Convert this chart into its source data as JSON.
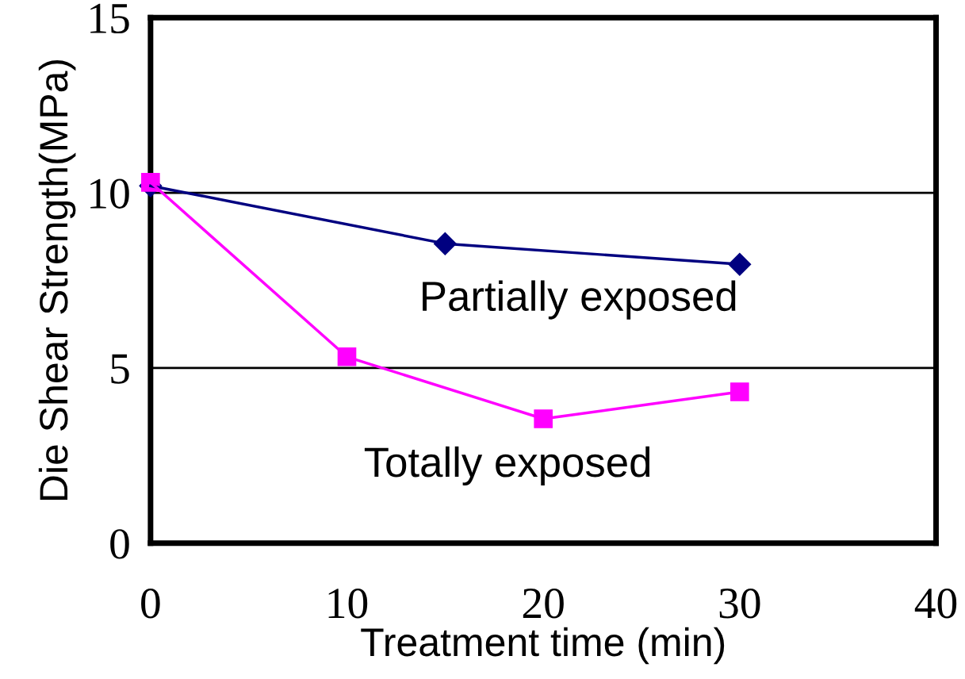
{
  "chart_data": {
    "type": "line",
    "xlabel": "Treatment time (min)",
    "ylabel": "Die Shear Strength(MPa)",
    "xlim": [
      0,
      40
    ],
    "xticks": [
      0,
      10,
      20,
      30,
      40
    ],
    "ylim": [
      0,
      15
    ],
    "yticks": [
      0,
      5,
      10,
      15
    ],
    "grid": "y",
    "legend": false,
    "line_style": "solid",
    "series": [
      {
        "name": "Partially exposed",
        "color": "#000080",
        "marker": "diamond",
        "x": [
          0,
          15,
          30
        ],
        "values": [
          10.2,
          8.55,
          7.96
        ]
      },
      {
        "name": "Totally exposed",
        "color": "#ff00ff",
        "marker": "square",
        "x": [
          0,
          10,
          20,
          30
        ],
        "values": [
          10.3,
          5.32,
          3.55,
          4.32
        ]
      }
    ]
  }
}
